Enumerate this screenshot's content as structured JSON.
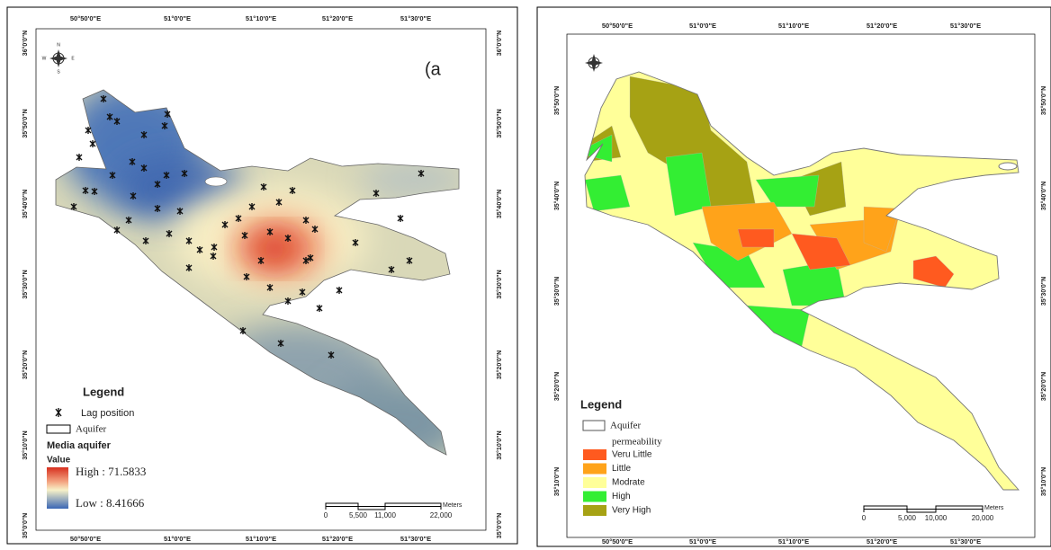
{
  "left_map": {
    "panel_label": "(a",
    "lon_labels": [
      "50°50'0\"E",
      "51°0'0\"E",
      "51°10'0\"E",
      "51°20'0\"E",
      "51°30'0\"E"
    ],
    "lat_labels": [
      "36°0'0\"N",
      "35°50'0\"N",
      "35°40'0\"N",
      "35°30'0\"N",
      "35°20'0\"N",
      "35°10'0\"N",
      "35°0'0\"N"
    ],
    "compass": {
      "n": "N",
      "s": "S",
      "e": "E",
      "w": "W"
    },
    "legend": {
      "title": "Legend",
      "items": [
        "Lag position",
        "Aquifer"
      ],
      "layer": "Media aquifer",
      "field": "Value",
      "high": "High : 71.5833",
      "low": "Low : 8.41666"
    },
    "scale": {
      "ticks": [
        "0",
        "5,500",
        "11,000",
        "22,000"
      ],
      "unit": "Meters"
    }
  },
  "right_map": {
    "lon_labels": [
      "50°50'0\"E",
      "51°0'0\"E",
      "51°10'0\"E",
      "51°20'0\"E",
      "51°30'0\"E"
    ],
    "lat_labels": [
      "35°50'0\"N",
      "35°40'0\"N",
      "35°30'0\"N",
      "35°20'0\"N",
      "35°10'0\"N"
    ],
    "legend": {
      "title": "Legend",
      "aquifer": "Aquifer",
      "field": "permeability",
      "classes": [
        {
          "label": "Veru Little",
          "color": "#ff5a1f"
        },
        {
          "label": "Little",
          "color": "#ffa31a"
        },
        {
          "label": "Modrate",
          "color": "#ffff99"
        },
        {
          "label": "High",
          "color": "#33ee33"
        },
        {
          "label": "Very High",
          "color": "#a6a214"
        }
      ]
    },
    "scale": {
      "ticks": [
        "0",
        "5,000",
        "10,000",
        "20,000"
      ],
      "unit": "Meters"
    }
  }
}
